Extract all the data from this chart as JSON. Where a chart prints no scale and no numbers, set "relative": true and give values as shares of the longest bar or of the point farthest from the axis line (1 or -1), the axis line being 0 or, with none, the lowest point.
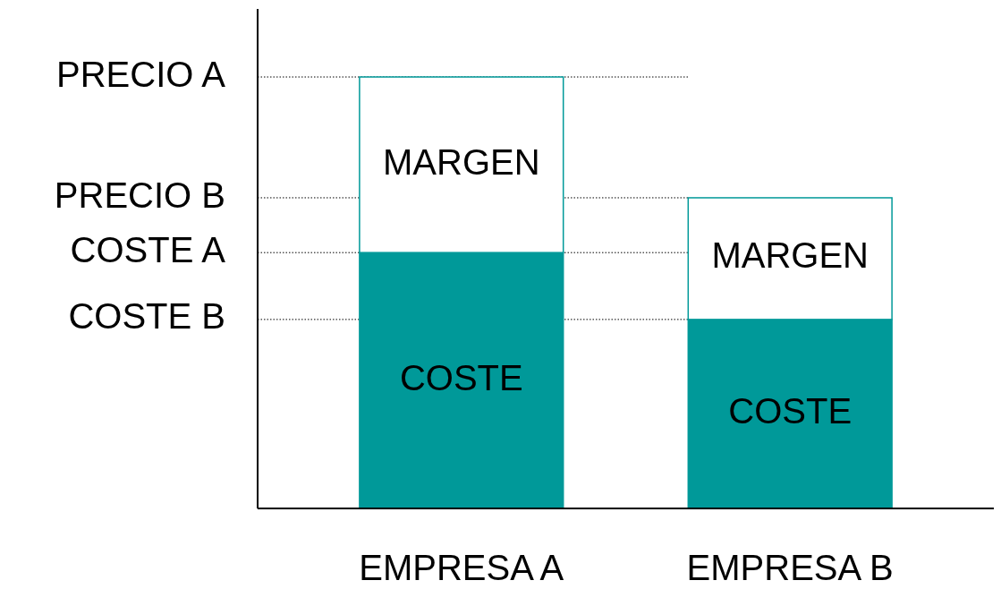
{
  "chart_data": {
    "type": "bar",
    "stacked": true,
    "relative": true,
    "categories": [
      "EMPRESA A",
      "EMPRESA B"
    ],
    "series": [
      {
        "name": "COSTE",
        "color": "#009999",
        "values": [
          0.593,
          0.438
        ]
      },
      {
        "name": "MARGEN",
        "color": "#ffffff",
        "values": [
          0.407,
          0.282
        ]
      }
    ],
    "ref_lines": [
      {
        "axis": "y",
        "value": 1,
        "label": "PRECIO A",
        "line_style": "dotted"
      },
      {
        "axis": "y",
        "value": 0.72,
        "label": "PRECIO B",
        "line_style": "dotted"
      },
      {
        "axis": "y",
        "value": 0.593,
        "label": "COSTE A",
        "line_style": "dotted"
      },
      {
        "axis": "y",
        "value": 0.438,
        "label": "COSTE B",
        "line_style": "dotted"
      }
    ]
  }
}
